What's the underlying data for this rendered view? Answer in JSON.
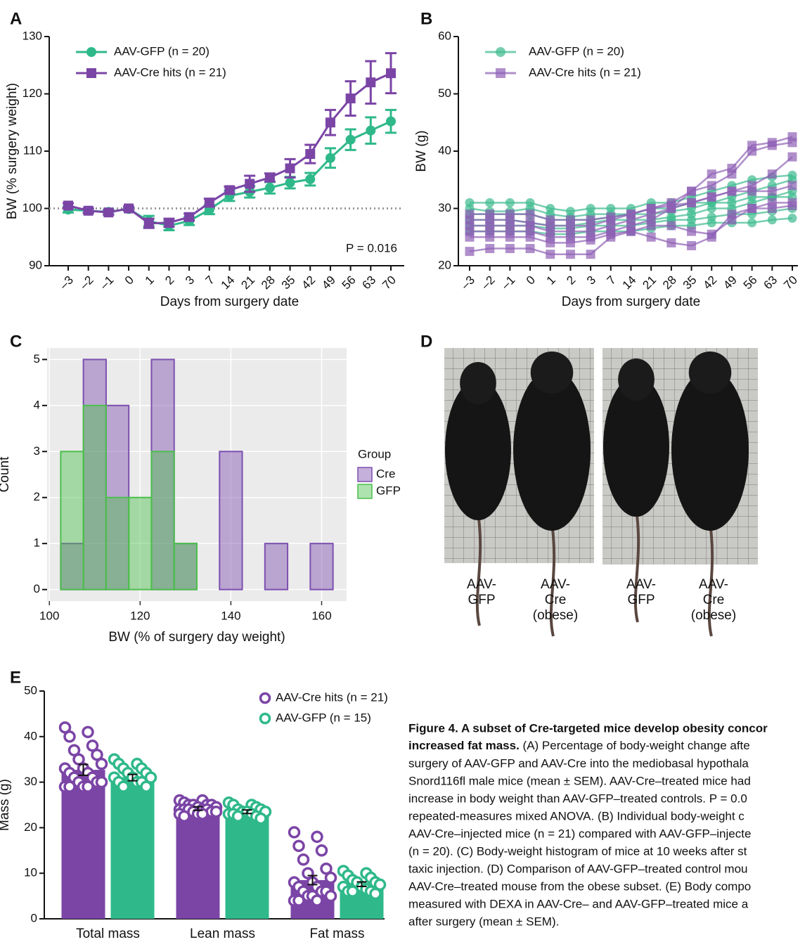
{
  "chart_data": [
    {
      "type": "line",
      "panel": "A",
      "ylabel": "BW (% surgery weight)",
      "xlabel": "Days from surgery date",
      "categories": [
        "–3",
        "–2",
        "–1",
        "0",
        "1",
        "2",
        "3",
        "7",
        "14",
        "21",
        "28",
        "35",
        "42",
        "49",
        "56",
        "63",
        "70"
      ],
      "ylim": [
        90,
        130
      ],
      "yticks": [
        90,
        100,
        110,
        120,
        130
      ],
      "ref_line": 100,
      "annotation": "P = 0.016",
      "series": [
        {
          "name": "AAV-GFP (n = 20)",
          "color": "#2fb98a",
          "marker": "circle",
          "values": [
            99.8,
            99.6,
            99.4,
            99.9,
            97.8,
            97.0,
            97.8,
            99.8,
            102.2,
            102.9,
            103.6,
            104.5,
            105.1,
            108.8,
            112.0,
            113.6,
            115.2
          ],
          "errors": [
            0.5,
            0.4,
            0.4,
            0.3,
            0.9,
            0.8,
            0.7,
            0.8,
            0.9,
            1.0,
            1.0,
            1.0,
            1.1,
            1.7,
            1.8,
            2.3,
            2.0
          ]
        },
        {
          "name": "AAV-Cre hits (n = 21)",
          "color": "#7b45a6",
          "marker": "square",
          "values": [
            100.5,
            99.6,
            99.3,
            100.0,
            97.4,
            97.5,
            98.5,
            101.0,
            103.2,
            104.3,
            105.4,
            107.0,
            109.5,
            115.0,
            119.2,
            122.0,
            123.6
          ],
          "errors": [
            0.4,
            0.4,
            0.4,
            0.3,
            0.8,
            0.7,
            0.6,
            0.7,
            0.6,
            1.4,
            0.7,
            1.6,
            1.6,
            2.2,
            3.0,
            3.7,
            3.5
          ]
        }
      ]
    },
    {
      "type": "line",
      "panel": "B",
      "ylabel": "BW (g)",
      "xlabel": "Days from surgery date",
      "categories": [
        "–3",
        "–2",
        "–1",
        "0",
        "1",
        "2",
        "3",
        "7",
        "14",
        "21",
        "28",
        "35",
        "42",
        "49",
        "56",
        "63",
        "70"
      ],
      "ylim": [
        20,
        60
      ],
      "yticks": [
        20,
        30,
        40,
        50,
        60
      ],
      "series": [
        {
          "name": "AAV-GFP (n = 20)",
          "color": "#3dba8f",
          "marker": "circle",
          "lines": [
            [
              31,
              31,
              31,
              31,
              30,
              29.5,
              30,
              30,
              30,
              31,
              31,
              32,
              33,
              34,
              35,
              35.5,
              35.8
            ],
            [
              30,
              29.5,
              29.5,
              30,
              29,
              28.5,
              29,
              29,
              29,
              30,
              30,
              31,
              31,
              32,
              33,
              34,
              35
            ],
            [
              28,
              28,
              28,
              27.5,
              27,
              27,
              27.5,
              28,
              28,
              28,
              28.5,
              29,
              30,
              30,
              31,
              32,
              33
            ],
            [
              27,
              27,
              27,
              27,
              26.5,
              26.5,
              27,
              27,
              27,
              27.5,
              28,
              28,
              28.5,
              29,
              29,
              29.5,
              30
            ],
            [
              26,
              26,
              26,
              26,
              25.5,
              25.5,
              26,
              26,
              26,
              26.5,
              27,
              27,
              27.5,
              27.5,
              27.5,
              28,
              28.3
            ],
            [
              29,
              29,
              29,
              29,
              28,
              28,
              28,
              28.5,
              29,
              29,
              29.5,
              30,
              31,
              31,
              32,
              32,
              32
            ]
          ]
        },
        {
          "name": "AAV-Cre hits (n = 21)",
          "color": "#8e5fb5",
          "marker": "square",
          "lines": [
            [
              26,
              26,
              26,
              26,
              25,
              25,
              25,
              26,
              27,
              28,
              30,
              33,
              36,
              37,
              41,
              41.5,
              42.5
            ],
            [
              28,
              28,
              28,
              27.5,
              27,
              27,
              27,
              28,
              29,
              30,
              31,
              33,
              34,
              36,
              40,
              41,
              41.5
            ],
            [
              22.5,
              23,
              23,
              23,
              22,
              22,
              22,
              25,
              26,
              27,
              27,
              26,
              25.5,
              28,
              30,
              31,
              31
            ],
            [
              27,
              27,
              27,
              27,
              26,
              26,
              26,
              27,
              28,
              29,
              30,
              31,
              32,
              33,
              34,
              36,
              39
            ],
            [
              25,
              25,
              25,
              25,
              24,
              24,
              24.5,
              25.5,
              26,
              25,
              24,
              23.5,
              25,
              29,
              30,
              30,
              30.5
            ],
            [
              29,
              29,
              29,
              29,
              28,
              28,
              28,
              28.5,
              29,
              30,
              30.5,
              31,
              32,
              33,
              33,
              33,
              34
            ]
          ]
        }
      ]
    },
    {
      "type": "histogram",
      "panel": "C",
      "ylabel": "Count",
      "xlabel": "BW (% of surgery day weight)",
      "bins": [
        102.5,
        107.5,
        112.5,
        117.5,
        122.5,
        127.5,
        132.5,
        137.5,
        142.5,
        147.5,
        152.5,
        157.5,
        162.5
      ],
      "xlim": [
        99.5,
        165.5
      ],
      "xticks": [
        100,
        120,
        140,
        160
      ],
      "ylim": [
        -0.25,
        5.25
      ],
      "yticks": [
        0,
        1,
        2,
        3,
        4,
        5
      ],
      "grid": true,
      "legend_title": "Group",
      "series": [
        {
          "name": "Cre",
          "color": "#7d4fb0",
          "values": [
            1,
            5,
            4,
            0,
            5,
            1,
            0,
            3,
            0,
            1,
            0,
            1
          ]
        },
        {
          "name": "GFP",
          "color": "#4cbf4c",
          "values": [
            3,
            4,
            2,
            2,
            3,
            1,
            0,
            0,
            0,
            0,
            0,
            0
          ]
        }
      ]
    },
    {
      "type": "bar",
      "panel": "E",
      "ylabel": "Mass (g)",
      "categories": [
        "Total mass",
        "Lean mass",
        "Fat mass"
      ],
      "ylim": [
        0,
        50
      ],
      "yticks": [
        0,
        10,
        20,
        30,
        40,
        50
      ],
      "series": [
        {
          "name": "AAV-Cre hits (n = 21)",
          "color": "#7b45a6",
          "values": [
            32.7,
            24.2,
            8.5
          ],
          "errors": [
            1.2,
            0.4,
            1.0
          ],
          "points": [
            [
              42,
              41,
              40,
              38,
              37,
              36,
              35,
              34,
              33,
              33,
              32,
              32,
              31,
              31,
              30,
              30,
              30,
              29,
              29,
              29,
              29
            ],
            [
              26,
              26,
              25.5,
              25,
              25,
              25,
              25,
              24.5,
              24.5,
              24,
              24,
              24,
              24,
              24,
              23.5,
              23.5,
              23.5,
              23,
              23,
              23,
              22.5
            ],
            [
              19,
              18,
              16,
              15,
              13,
              11,
              10,
              9,
              8,
              8,
              7,
              7,
              6,
              6,
              6,
              5,
              5,
              5,
              4,
              4,
              4
            ]
          ]
        },
        {
          "name": "AAV-GFP (n = 15)",
          "color": "#2fb98a",
          "values": [
            31.0,
            23.5,
            7.6
          ],
          "errors": [
            0.7,
            0.4,
            0.5
          ],
          "points": [
            [
              35,
              34,
              34,
              33,
              33,
              32,
              32,
              31,
              31,
              31,
              30,
              30,
              30,
              29,
              29
            ],
            [
              25.5,
              25,
              25,
              24.5,
              24,
              24,
              23.5,
              23.5,
              23.5,
              23,
              23,
              23,
              22.5,
              22.5,
              22
            ],
            [
              10.5,
              10,
              9.5,
              9,
              8.5,
              8,
              8,
              7.5,
              7,
              7,
              6.5,
              6,
              6,
              6,
              5.5
            ]
          ]
        }
      ]
    }
  ],
  "photos": {
    "panel": "D",
    "labels": [
      [
        "AAV-",
        "GFP"
      ],
      [
        "AAV-",
        "Cre",
        "(obese)"
      ],
      [
        "AAV-",
        "GFP"
      ],
      [
        "AAV-",
        "Cre",
        "(obese)"
      ]
    ]
  },
  "caption": {
    "title": [
      "Figure 4. A subset of Cre-targeted mice develop obesity concor",
      "increased fat mass."
    ],
    "body": [
      " (A) Percentage of body-weight change afte",
      "surgery of AAV-GFP and AAV-Cre into the mediobasal hypothala",
      "Snord116fl male mice (mean ± SEM). AAV-Cre–treated mice had",
      "increase in body weight than AAV-GFP–treated controls. P = 0.0",
      "repeated-measures mixed ANOVA. (B) Individual body-weight c",
      "AAV-Cre–injected mice (n = 21) compared with AAV-GFP–injecte",
      "(n = 20). (C) Body-weight histogram of mice at 10 weeks after st",
      "taxic injection. (D) Comparison of AAV-GFP–treated control mou",
      "AAV-Cre–treated mouse from the obese subset. (E) Body compo",
      "measured with DEXA in AAV-Cre– and AAV-GFP–treated mice a",
      "after surgery (mean ± SEM)."
    ]
  }
}
